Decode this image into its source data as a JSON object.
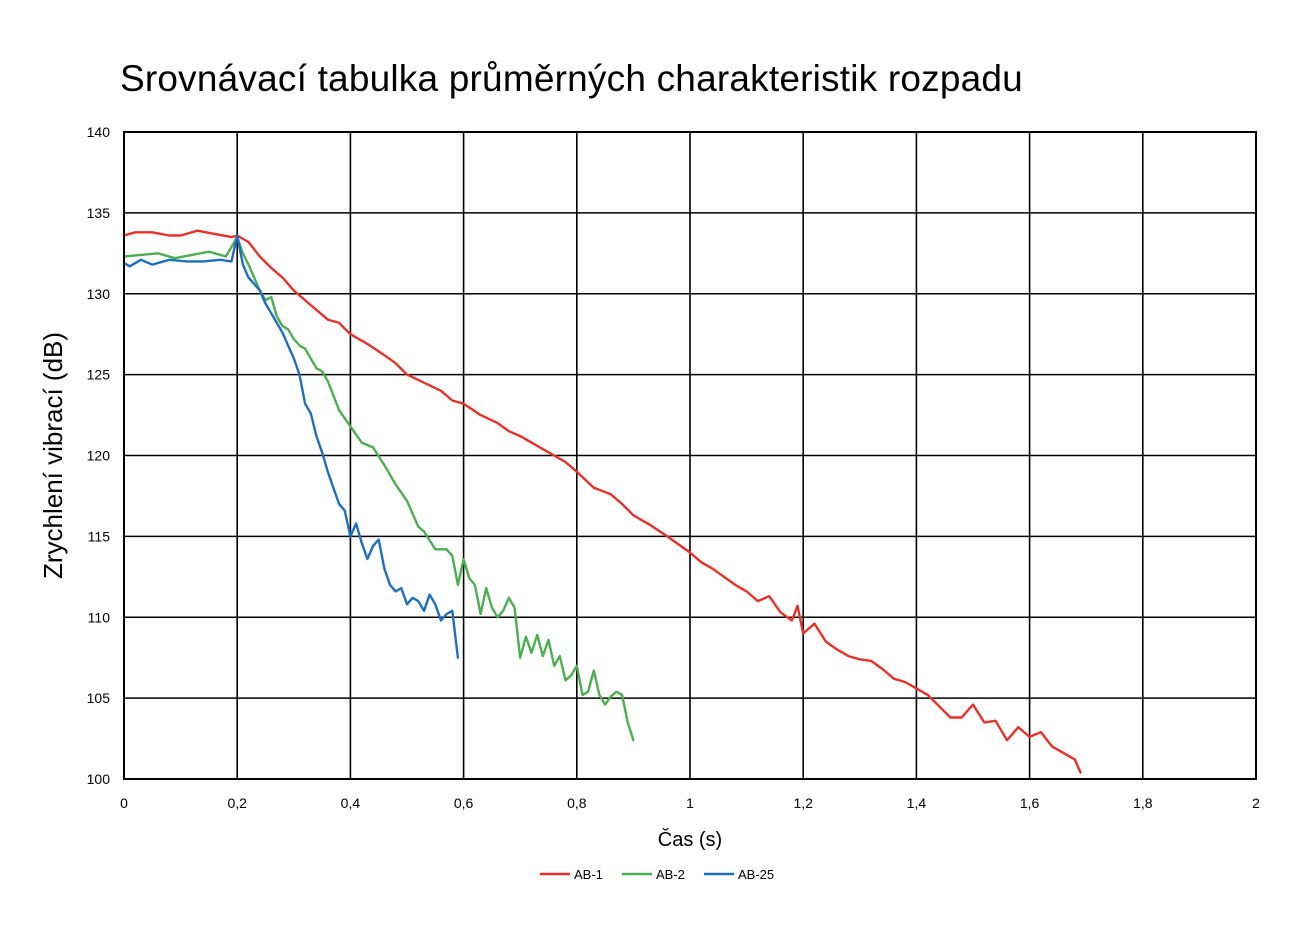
{
  "chart_data": {
    "type": "line",
    "title": "Srovnávací tabulka průměrných charakteristik rozpadu",
    "xlabel": "Čas (s)",
    "ylabel": "Zrychlení vibrací (dB)",
    "xlim": [
      0,
      2
    ],
    "ylim": [
      100,
      140
    ],
    "xticks": [
      0,
      0.2,
      0.4,
      0.6,
      0.8,
      1,
      1.2,
      1.4,
      1.6,
      1.8,
      2
    ],
    "xtick_labels": [
      "0",
      "0,2",
      "0,4",
      "0,6",
      "0,8",
      "1",
      "1,2",
      "1,4",
      "1,6",
      "1,8",
      "2"
    ],
    "yticks": [
      100,
      105,
      110,
      115,
      120,
      125,
      130,
      135,
      140
    ],
    "ytick_labels": [
      "100",
      "105",
      "110",
      "115",
      "120",
      "125",
      "130",
      "135",
      "140"
    ],
    "grid": true,
    "legend_position": "bottom",
    "series": [
      {
        "name": "AB-1",
        "color": "#e8312a",
        "x": [
          0,
          0.02,
          0.05,
          0.08,
          0.1,
          0.13,
          0.16,
          0.19,
          0.2,
          0.22,
          0.24,
          0.26,
          0.28,
          0.3,
          0.33,
          0.36,
          0.38,
          0.4,
          0.43,
          0.46,
          0.48,
          0.5,
          0.53,
          0.56,
          0.58,
          0.6,
          0.63,
          0.66,
          0.68,
          0.7,
          0.73,
          0.76,
          0.78,
          0.8,
          0.83,
          0.86,
          0.88,
          0.9,
          0.93,
          0.96,
          0.98,
          1.0,
          1.02,
          1.04,
          1.06,
          1.08,
          1.1,
          1.12,
          1.14,
          1.16,
          1.18,
          1.19,
          1.2,
          1.22,
          1.24,
          1.26,
          1.28,
          1.3,
          1.32,
          1.34,
          1.36,
          1.38,
          1.4,
          1.42,
          1.44,
          1.46,
          1.48,
          1.5,
          1.52,
          1.54,
          1.56,
          1.58,
          1.6,
          1.62,
          1.64,
          1.66,
          1.68,
          1.69
        ],
        "y": [
          133.6,
          133.8,
          133.8,
          133.6,
          133.6,
          133.9,
          133.7,
          133.5,
          133.6,
          133.2,
          132.3,
          131.6,
          131.0,
          130.2,
          129.3,
          128.4,
          128.2,
          127.5,
          126.9,
          126.2,
          125.7,
          125.0,
          124.5,
          124.0,
          123.4,
          123.2,
          122.5,
          122.0,
          121.5,
          121.2,
          120.6,
          120.0,
          119.6,
          119.0,
          118.0,
          117.6,
          117.0,
          116.3,
          115.7,
          115.0,
          114.5,
          114.0,
          113.4,
          113.0,
          112.5,
          112.0,
          111.6,
          111.0,
          111.3,
          110.3,
          109.8,
          110.7,
          109.0,
          109.6,
          108.5,
          108.0,
          107.6,
          107.4,
          107.3,
          106.8,
          106.2,
          106.0,
          105.6,
          105.2,
          104.5,
          103.8,
          103.8,
          104.6,
          103.5,
          103.6,
          102.4,
          103.2,
          102.6,
          102.9,
          102.0,
          101.6,
          101.2,
          100.4
        ]
      },
      {
        "name": "AB-2",
        "color": "#4caf50",
        "x": [
          0,
          0.03,
          0.06,
          0.09,
          0.12,
          0.15,
          0.18,
          0.2,
          0.21,
          0.22,
          0.23,
          0.24,
          0.25,
          0.26,
          0.27,
          0.28,
          0.29,
          0.3,
          0.31,
          0.32,
          0.34,
          0.35,
          0.36,
          0.38,
          0.4,
          0.42,
          0.44,
          0.46,
          0.48,
          0.5,
          0.52,
          0.53,
          0.55,
          0.57,
          0.58,
          0.59,
          0.6,
          0.61,
          0.62,
          0.63,
          0.64,
          0.65,
          0.66,
          0.67,
          0.68,
          0.69,
          0.7,
          0.71,
          0.72,
          0.73,
          0.74,
          0.75,
          0.76,
          0.77,
          0.78,
          0.79,
          0.8,
          0.81,
          0.82,
          0.83,
          0.84,
          0.85,
          0.86,
          0.87,
          0.88,
          0.89,
          0.9
        ],
        "y": [
          132.3,
          132.4,
          132.5,
          132.2,
          132.4,
          132.6,
          132.3,
          133.5,
          132.5,
          131.8,
          131.0,
          130.2,
          129.6,
          129.8,
          128.6,
          128.0,
          127.8,
          127.2,
          126.8,
          126.6,
          125.4,
          125.2,
          124.6,
          122.8,
          121.8,
          120.8,
          120.5,
          119.4,
          118.2,
          117.2,
          115.6,
          115.3,
          114.2,
          114.2,
          113.8,
          112.0,
          113.6,
          112.4,
          112.0,
          110.2,
          111.8,
          110.6,
          110.0,
          110.4,
          111.2,
          110.6,
          107.5,
          108.8,
          107.8,
          108.9,
          107.6,
          108.6,
          107.0,
          107.6,
          106.1,
          106.4,
          107.0,
          105.2,
          105.4,
          106.7,
          105.2,
          104.6,
          105.1,
          105.4,
          105.2,
          103.5,
          102.4
        ]
      },
      {
        "name": "AB-25",
        "color": "#1f6fc1",
        "x": [
          0,
          0.01,
          0.03,
          0.05,
          0.08,
          0.11,
          0.14,
          0.17,
          0.19,
          0.2,
          0.21,
          0.22,
          0.23,
          0.24,
          0.25,
          0.26,
          0.27,
          0.28,
          0.29,
          0.3,
          0.31,
          0.32,
          0.33,
          0.34,
          0.35,
          0.36,
          0.37,
          0.38,
          0.39,
          0.4,
          0.41,
          0.42,
          0.43,
          0.44,
          0.45,
          0.46,
          0.47,
          0.48,
          0.49,
          0.5,
          0.51,
          0.52,
          0.53,
          0.54,
          0.55,
          0.56,
          0.57,
          0.58,
          0.59
        ],
        "y": [
          131.9,
          131.7,
          132.1,
          131.8,
          132.1,
          132.0,
          132.0,
          132.1,
          132.0,
          133.6,
          131.8,
          131.0,
          130.6,
          130.2,
          129.4,
          128.8,
          128.2,
          127.6,
          126.8,
          126.0,
          125.0,
          123.2,
          122.6,
          121.2,
          120.2,
          119.0,
          118.0,
          117.0,
          116.6,
          115.0,
          115.8,
          114.6,
          113.6,
          114.4,
          114.8,
          113.0,
          112.0,
          111.6,
          111.8,
          110.8,
          111.2,
          111.0,
          110.4,
          111.4,
          110.8,
          109.8,
          110.2,
          110.4,
          107.5
        ]
      }
    ]
  }
}
